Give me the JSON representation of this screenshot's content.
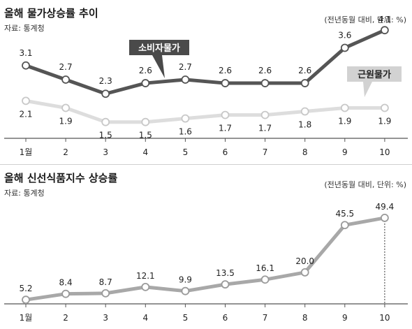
{
  "chart_data": [
    {
      "type": "line",
      "title": "올해 물가상승률 추이",
      "source": "자료: 통계청",
      "unit": "(전년동월 대비, 단위: %)",
      "categories": [
        "1월",
        "2",
        "3",
        "4",
        "5",
        "6",
        "7",
        "8",
        "9",
        "10"
      ],
      "series": [
        {
          "name": "소비자물가",
          "values": [
            3.1,
            2.7,
            2.3,
            2.6,
            2.7,
            2.6,
            2.6,
            2.6,
            3.6,
            4.1
          ],
          "color": "#555555"
        },
        {
          "name": "근원물가",
          "values": [
            2.1,
            1.9,
            1.5,
            1.5,
            1.6,
            1.7,
            1.7,
            1.8,
            1.9,
            1.9
          ],
          "color": "#dddddd"
        }
      ],
      "ylim": [
        1.0,
        4.4
      ],
      "grid": false
    },
    {
      "type": "line",
      "title": "올해 신선식품지수 상승률",
      "source": "자료: 통계청",
      "unit": "(전년동월 대비, 단위: %)",
      "categories": [
        "1월",
        "2",
        "3",
        "4",
        "5",
        "6",
        "7",
        "8",
        "9",
        "10"
      ],
      "series": [
        {
          "values": [
            5.2,
            8.4,
            8.7,
            12.1,
            9.9,
            13.5,
            16.1,
            20.0,
            45.5,
            49.4
          ],
          "color": "#a8a8a8"
        }
      ],
      "ylim": [
        3,
        52
      ],
      "grid": false
    }
  ]
}
